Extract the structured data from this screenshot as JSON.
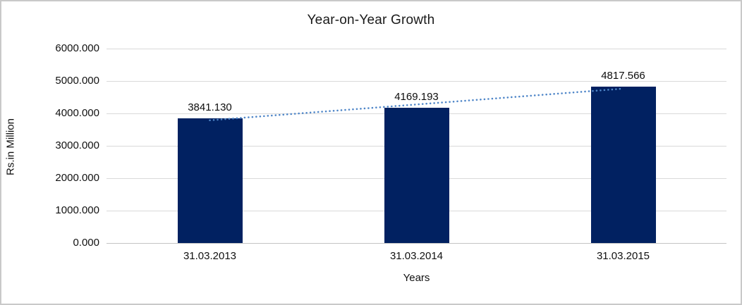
{
  "frame": {
    "background": "#ffffff",
    "border_color": "#c9c9c9"
  },
  "chart_data": {
    "type": "bar",
    "title": "Year-on-Year Growth",
    "xlabel": "Years",
    "ylabel": "Rs.in Million",
    "categories": [
      "31.03.2013",
      "31.03.2014",
      "31.03.2015"
    ],
    "values": [
      3841.13,
      4169.193,
      4817.566
    ],
    "data_labels": [
      "3841.130",
      "4169.193",
      "4817.566"
    ],
    "ylim": [
      0,
      6000
    ],
    "ytick_step": 1000,
    "ytick_labels": [
      "0.000",
      "1000.000",
      "2000.000",
      "3000.000",
      "4000.000",
      "5000.000",
      "6000.000"
    ],
    "grid": true,
    "legend": "none",
    "bar_color": "#012161",
    "gridline_color": "#d9d9d9",
    "trendline": {
      "type": "linear",
      "style": "dotted",
      "color": "#4f86c8"
    }
  }
}
